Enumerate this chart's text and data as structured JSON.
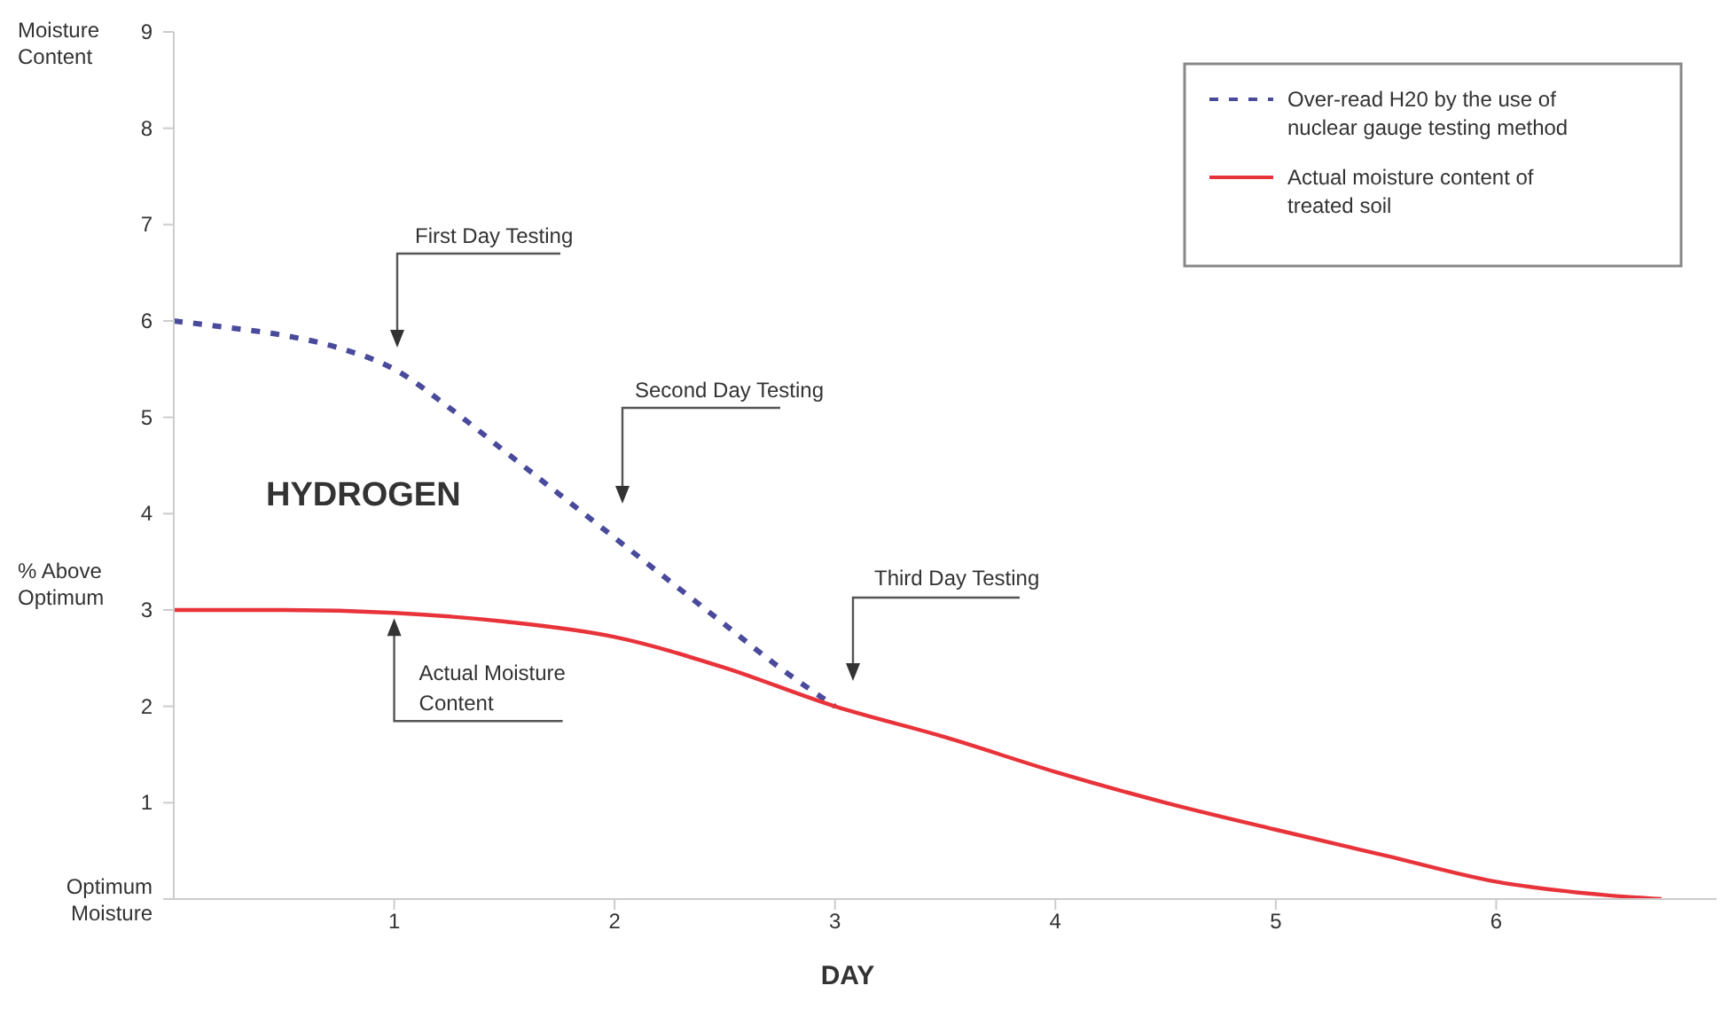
{
  "chart_data": {
    "type": "line",
    "ylabel": "Moisture Content",
    "xlabel": "DAY",
    "xlim": [
      0,
      7
    ],
    "xticks": [
      1,
      2,
      3,
      4,
      5,
      6
    ],
    "ylim": [
      0,
      9
    ],
    "yticks": [
      {
        "value": 0,
        "label": "Optimum Moisture"
      },
      1,
      2,
      3,
      4,
      5,
      6,
      7,
      8,
      9
    ],
    "grid": false,
    "legend": "top right",
    "marker": "none",
    "series": [
      {
        "name": "Over-read H20 by the use of nuclear gauge testing method",
        "color": "#4a4a9c",
        "line_style": "dashed",
        "x": [
          0,
          0.25,
          0.5,
          0.75,
          1,
          1.25,
          1.5,
          1.75,
          2,
          2.25,
          2.5,
          2.75,
          3
        ],
        "values": [
          6.0,
          5.93,
          5.85,
          5.72,
          5.5,
          5.1,
          4.65,
          4.2,
          3.75,
          3.3,
          2.85,
          2.4,
          2.0
        ]
      },
      {
        "name": "Actual moisture content of treated soil",
        "color": "#e8333a",
        "line_style": "solid",
        "x": [
          0,
          0.5,
          1,
          1.5,
          2,
          2.5,
          3,
          3.5,
          4,
          4.5,
          5,
          5.5,
          6,
          6.5,
          6.75
        ],
        "values": [
          3.0,
          3.0,
          2.97,
          2.88,
          2.72,
          2.4,
          2.0,
          1.68,
          1.32,
          1.0,
          0.72,
          0.45,
          0.18,
          0.04,
          0
        ]
      }
    ],
    "annotations": [
      "First Day Testing",
      "Second Day Testing",
      "Third Day Testing",
      {
        "text": "Actual Moisture Content",
        "x": 1,
        "y": 2.97
      },
      "% Above Optimum",
      "HYDROGEN"
    ]
  }
}
